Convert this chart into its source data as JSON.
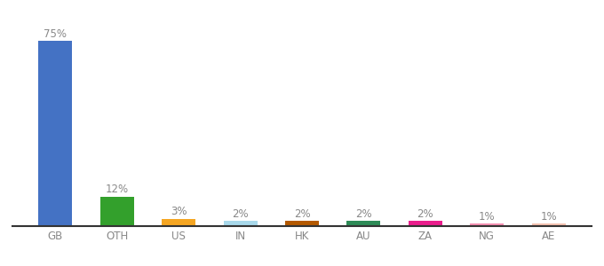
{
  "categories": [
    "GB",
    "OTH",
    "US",
    "IN",
    "HK",
    "AU",
    "ZA",
    "NG",
    "AE"
  ],
  "values": [
    75,
    12,
    3,
    2,
    2,
    2,
    2,
    1,
    1
  ],
  "bar_colors": [
    "#4472c4",
    "#33a02c",
    "#f5a623",
    "#a8d8ea",
    "#b35900",
    "#2e8b57",
    "#e91e8c",
    "#f48fb1",
    "#f4c2b0"
  ],
  "ylim": [
    0,
    83
  ],
  "background_color": "#ffffff",
  "label_fontsize": 8.5,
  "tick_fontsize": 8.5,
  "label_color": "#888888"
}
